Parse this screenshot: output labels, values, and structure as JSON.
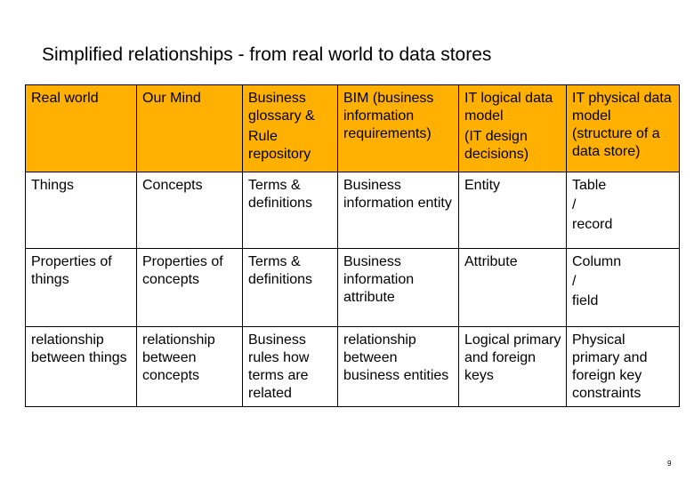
{
  "title": "Simplified relationships - from real world to data stores",
  "page_number": "9",
  "table": {
    "header": {
      "c1": "Real world",
      "c2": "Our Mind",
      "c3a": "Business glossary &",
      "c3b": "Rule repository",
      "c4": "BIM (business information requirements)",
      "c5a": "IT logical data model",
      "c5b": "(IT design decisions)",
      "c6": "IT physical data model (structure of a data store)"
    },
    "row1": {
      "c1": "Things",
      "c2": "Concepts",
      "c3": "Terms & definitions",
      "c4": "Business information entity",
      "c5": "Entity",
      "c6a": "Table",
      "c6b": "/",
      "c6c": "record"
    },
    "row2": {
      "c1": "Properties of things",
      "c2": "Properties of concepts",
      "c3": "Terms & definitions",
      "c4": "Business information attribute",
      "c5": "Attribute",
      "c6a": "Column",
      "c6b": "/",
      "c6c": "field"
    },
    "row3": {
      "c1": "relationship between things",
      "c2": "relationship between concepts",
      "c3": "Business rules how terms are related",
      "c4": "relationship between business entities",
      "c5": "Logical primary and foreign keys",
      "c6": "Physical primary and foreign key constraints"
    }
  }
}
